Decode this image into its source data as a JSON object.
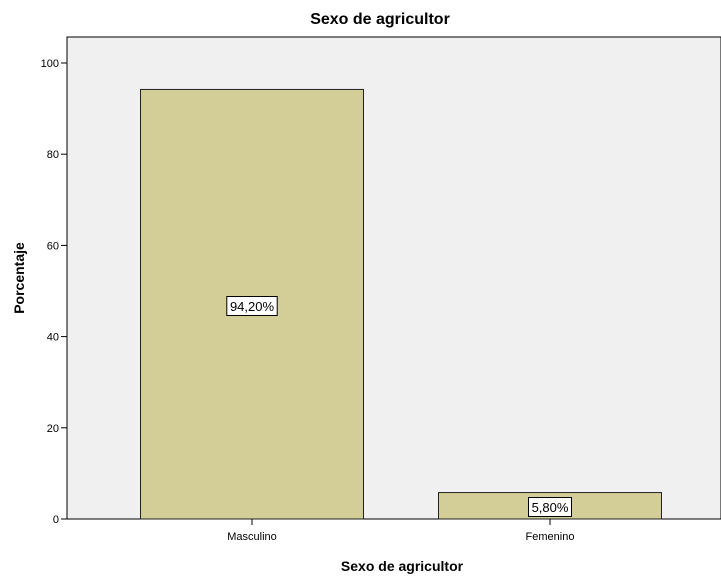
{
  "chart_data": {
    "type": "bar",
    "title": "Sexo de agricultor",
    "xlabel": "Sexo de agricultor",
    "ylabel": "Porcentaje",
    "categories": [
      "Masculino",
      "Femenino"
    ],
    "values": [
      94.2,
      5.8
    ],
    "data_labels": [
      "94,20%",
      "5,80%"
    ],
    "ylim": [
      0,
      100
    ],
    "yticks": [
      0,
      20,
      40,
      60,
      80,
      100
    ],
    "ytick_labels": [
      "0",
      "20",
      "40",
      "60",
      "80",
      "100"
    ],
    "grid": false,
    "colors": {
      "bar_fill": "#d3ce97",
      "bar_stroke": "#222222",
      "plot_background": "#f0f0f0",
      "label_box": "#ffffff"
    }
  }
}
